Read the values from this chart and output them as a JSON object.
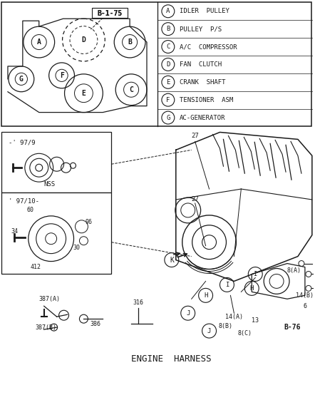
{
  "bg_color": "#ffffff",
  "border_color": "#1a1a1a",
  "legend_items": [
    [
      "A",
      "IDLER  PULLEY"
    ],
    [
      "B",
      "PULLEY  P/S"
    ],
    [
      "C",
      "A/C  COMPRESSOR"
    ],
    [
      "D",
      "FAN  CLUTCH"
    ],
    [
      "E",
      "CRANK  SHAFT"
    ],
    [
      "F",
      "TENSIONER  ASM"
    ],
    [
      "G",
      "AC-GENERATOR"
    ]
  ],
  "belt_label": "B-1-75",
  "bottom_label": "ENGINE  HARNESS",
  "b76_label": "B-76"
}
